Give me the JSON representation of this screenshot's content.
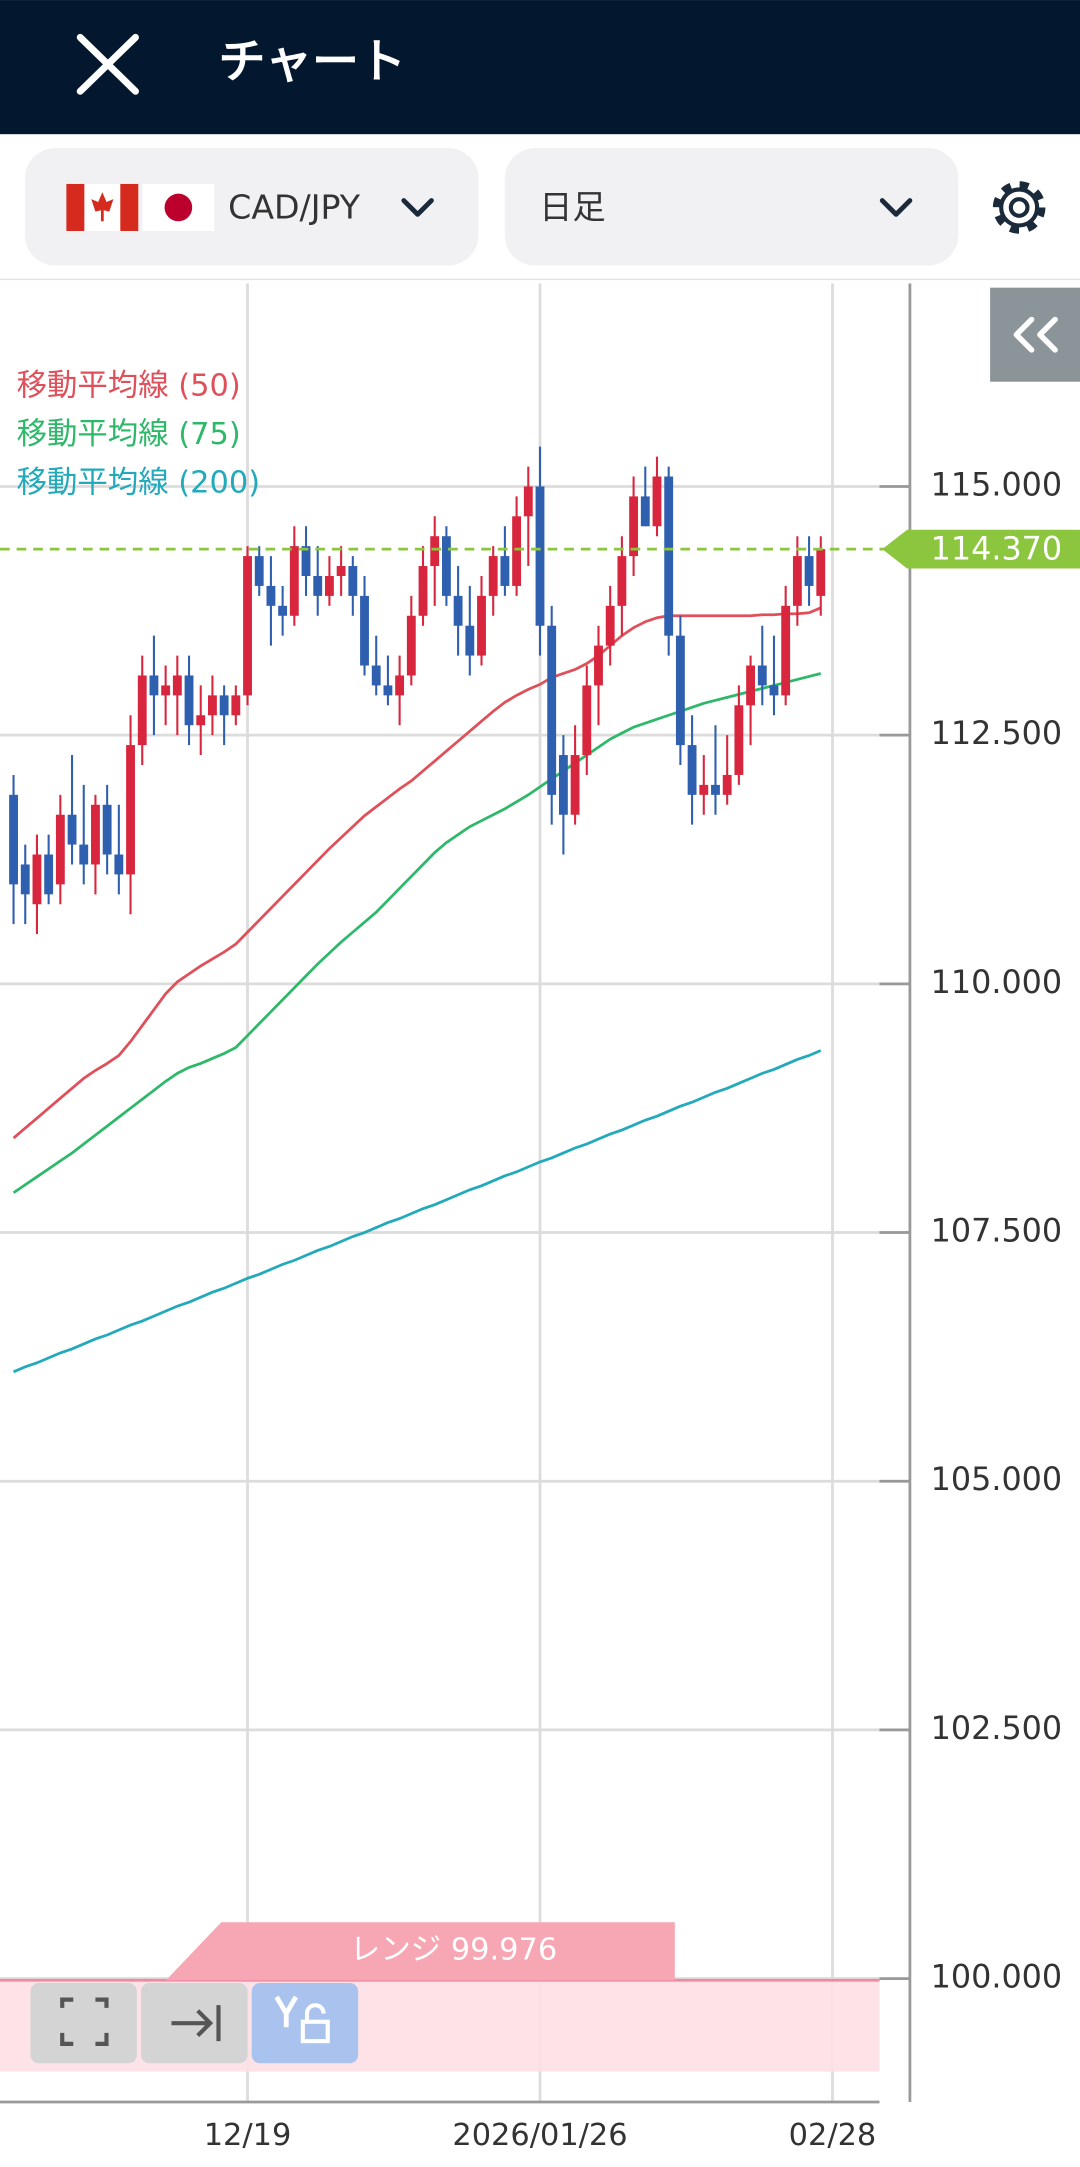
{
  "ui": {
    "title": "チャート",
    "pair": "CAD/JPY",
    "timeframe": "日足",
    "range_label": "レンジ 99.976"
  },
  "chart_data": {
    "type": "candlestick",
    "categories": [
      null,
      null,
      null,
      null,
      null,
      null,
      null,
      null,
      null,
      null,
      null,
      null,
      null,
      null,
      null,
      null,
      null,
      null,
      null,
      null,
      "12/19",
      null,
      null,
      null,
      null,
      null,
      null,
      null,
      null,
      null,
      null,
      null,
      null,
      null,
      null,
      null,
      null,
      null,
      null,
      null,
      null,
      null,
      null,
      null,
      null,
      "2026/01/26",
      null,
      null,
      null,
      null,
      null,
      null,
      null,
      null,
      null,
      null,
      null,
      null,
      null,
      null,
      null,
      null,
      null,
      null,
      null,
      null,
      null,
      null,
      null,
      null,
      "02/28"
    ],
    "open": [
      111.9,
      111.2,
      110.8,
      111.3,
      111.0,
      111.7,
      111.4,
      111.2,
      111.8,
      111.3,
      111.1,
      112.4,
      113.1,
      112.9,
      112.9,
      113.1,
      112.6,
      112.7,
      112.9,
      112.7,
      112.9,
      114.3,
      114.0,
      113.8,
      113.7,
      114.4,
      114.1,
      113.9,
      114.1,
      114.2,
      113.9,
      113.2,
      113.0,
      112.9,
      113.1,
      113.7,
      114.2,
      114.5,
      113.9,
      113.6,
      113.3,
      113.9,
      114.3,
      114.0,
      114.7,
      115.0,
      113.6,
      112.3,
      111.7,
      112.3,
      113.0,
      113.4,
      113.8,
      114.3,
      114.9,
      114.6,
      115.1,
      113.5,
      112.4,
      111.9,
      112.0,
      111.9,
      112.1,
      112.8,
      113.2,
      113.0,
      112.9,
      113.8,
      114.3,
      113.9,
      null
    ],
    "high": [
      112.1,
      111.4,
      111.5,
      111.5,
      111.9,
      112.3,
      112.0,
      111.9,
      112.0,
      111.8,
      112.7,
      113.3,
      113.5,
      113.2,
      113.3,
      113.3,
      113.0,
      113.1,
      113.0,
      113.0,
      114.4,
      114.4,
      114.3,
      114.0,
      114.6,
      114.6,
      114.4,
      114.3,
      114.4,
      114.3,
      114.1,
      113.5,
      113.3,
      113.3,
      113.9,
      114.4,
      114.7,
      114.6,
      114.2,
      114.0,
      114.1,
      114.4,
      114.6,
      114.9,
      115.2,
      115.4,
      113.8,
      112.5,
      112.6,
      113.2,
      113.6,
      114.0,
      114.5,
      115.1,
      115.2,
      115.3,
      115.2,
      113.7,
      112.7,
      112.3,
      112.6,
      112.5,
      113.0,
      113.3,
      113.6,
      113.5,
      114.0,
      114.5,
      114.5,
      114.5,
      null
    ],
    "low": [
      110.6,
      110.6,
      110.5,
      110.8,
      110.8,
      111.2,
      111.0,
      110.9,
      111.1,
      110.9,
      110.7,
      112.2,
      112.5,
      112.6,
      112.5,
      112.4,
      112.3,
      112.5,
      112.4,
      112.6,
      112.8,
      113.9,
      113.4,
      113.5,
      113.6,
      113.9,
      113.7,
      113.8,
      113.9,
      113.7,
      113.1,
      112.9,
      112.8,
      112.6,
      113.0,
      113.6,
      113.8,
      113.8,
      113.3,
      113.1,
      113.2,
      113.7,
      113.9,
      113.9,
      114.2,
      113.3,
      111.6,
      111.3,
      111.6,
      112.1,
      112.6,
      113.2,
      113.5,
      114.1,
      114.6,
      114.5,
      113.3,
      112.2,
      111.6,
      111.7,
      111.7,
      111.8,
      112.0,
      112.4,
      112.8,
      112.7,
      112.8,
      113.6,
      113.8,
      113.7,
      null
    ],
    "close": [
      111.0,
      110.9,
      111.3,
      110.9,
      111.7,
      111.4,
      111.2,
      111.8,
      111.3,
      111.1,
      112.4,
      113.1,
      112.9,
      113.0,
      113.1,
      112.6,
      112.7,
      112.9,
      112.7,
      112.9,
      114.3,
      114.0,
      113.8,
      113.7,
      114.4,
      114.1,
      113.9,
      114.1,
      114.2,
      113.9,
      113.2,
      113.0,
      112.9,
      113.1,
      113.7,
      114.2,
      114.5,
      113.9,
      113.6,
      113.3,
      113.9,
      114.3,
      114.0,
      114.7,
      115.0,
      113.6,
      111.9,
      111.7,
      112.3,
      113.0,
      113.4,
      113.8,
      114.3,
      114.9,
      114.6,
      115.1,
      113.5,
      112.4,
      111.9,
      112.0,
      111.9,
      112.1,
      112.8,
      113.2,
      113.0,
      112.9,
      113.8,
      114.3,
      114.0,
      114.37,
      null
    ],
    "up_color": "#d7263d",
    "down_color": "#2f5faf",
    "series": [
      {
        "name": "移動平均線 (50)",
        "color": "#e0505a",
        "values": [
          108.45,
          108.55,
          108.65,
          108.75,
          108.85,
          108.95,
          109.05,
          109.13,
          109.2,
          109.28,
          109.42,
          109.58,
          109.74,
          109.9,
          110.02,
          110.1,
          110.18,
          110.25,
          110.32,
          110.4,
          110.52,
          110.64,
          110.76,
          110.88,
          111.0,
          111.12,
          111.24,
          111.36,
          111.47,
          111.58,
          111.69,
          111.78,
          111.87,
          111.96,
          112.04,
          112.14,
          112.24,
          112.34,
          112.44,
          112.54,
          112.64,
          112.74,
          112.83,
          112.9,
          112.96,
          113.01,
          113.08,
          113.12,
          113.16,
          113.22,
          113.3,
          113.4,
          113.5,
          113.58,
          113.64,
          113.68,
          113.7,
          113.7,
          113.7,
          113.7,
          113.7,
          113.7,
          113.7,
          113.7,
          113.71,
          113.71,
          113.72,
          113.72,
          113.73,
          113.78,
          null
        ]
      },
      {
        "name": "移動平均線 (75)",
        "color": "#2eb86a",
        "values": [
          107.9,
          107.98,
          108.06,
          108.14,
          108.22,
          108.3,
          108.39,
          108.48,
          108.57,
          108.66,
          108.75,
          108.84,
          108.93,
          109.02,
          109.1,
          109.16,
          109.2,
          109.25,
          109.3,
          109.36,
          109.48,
          109.6,
          109.72,
          109.84,
          109.96,
          110.08,
          110.2,
          110.31,
          110.42,
          110.52,
          110.62,
          110.72,
          110.84,
          110.96,
          111.08,
          111.2,
          111.32,
          111.42,
          111.5,
          111.58,
          111.64,
          111.7,
          111.76,
          111.83,
          111.9,
          111.98,
          112.06,
          112.14,
          112.22,
          112.3,
          112.38,
          112.46,
          112.52,
          112.58,
          112.62,
          112.66,
          112.7,
          112.74,
          112.78,
          112.82,
          112.85,
          112.88,
          112.91,
          112.94,
          112.97,
          113.0,
          113.03,
          113.06,
          113.09,
          113.12,
          null
        ]
      },
      {
        "name": "移動平均線 (200)",
        "color": "#22aabb",
        "values": [
          106.1,
          106.15,
          106.19,
          106.24,
          106.29,
          106.33,
          106.38,
          106.43,
          106.47,
          106.52,
          106.57,
          106.61,
          106.66,
          106.71,
          106.76,
          106.8,
          106.85,
          106.9,
          106.94,
          106.99,
          107.04,
          107.08,
          107.13,
          107.18,
          107.22,
          107.27,
          107.32,
          107.36,
          107.41,
          107.46,
          107.5,
          107.55,
          107.6,
          107.64,
          107.69,
          107.74,
          107.78,
          107.83,
          107.88,
          107.93,
          107.97,
          108.02,
          108.07,
          108.11,
          108.16,
          108.21,
          108.25,
          108.3,
          108.35,
          108.39,
          108.44,
          108.49,
          108.53,
          108.58,
          108.63,
          108.67,
          108.72,
          108.77,
          108.81,
          108.86,
          108.91,
          108.95,
          109.0,
          109.05,
          109.1,
          109.14,
          109.19,
          109.24,
          109.28,
          109.33,
          null
        ]
      }
    ],
    "price_line": {
      "value": 114.37,
      "label": "114.370",
      "color": "#8cc63f"
    },
    "ylim": [
      98.76,
      117.04
    ],
    "yticks": [
      {
        "value": 100,
        "label": "100.000"
      },
      {
        "value": 102.5,
        "label": "102.500"
      },
      {
        "value": 105,
        "label": "105.000"
      },
      {
        "value": 107.5,
        "label": "107.500"
      },
      {
        "value": 110,
        "label": "110.000"
      },
      {
        "value": 112.5,
        "label": "112.500"
      },
      {
        "value": 115,
        "label": "115.000"
      }
    ],
    "grid": true
  }
}
